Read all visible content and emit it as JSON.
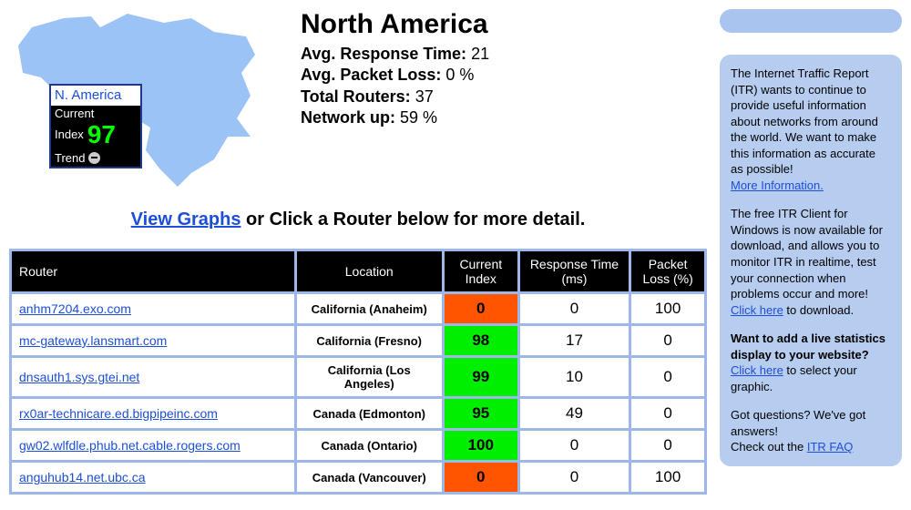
{
  "map": {
    "fill_color": "#9cc3f5",
    "badge": {
      "title": "N. America",
      "line1_label": "Current",
      "line2_label": "Index",
      "index_value": "97",
      "trend_label": "Trend"
    }
  },
  "stats": {
    "title": "North America",
    "avg_response_label": "Avg. Response Time:",
    "avg_response_value": "21",
    "avg_loss_label": "Avg. Packet Loss:",
    "avg_loss_value": "0 %",
    "total_routers_label": "Total Routers:",
    "total_routers_value": "37",
    "network_up_label": "Network up:",
    "network_up_value": "59 %"
  },
  "instruction": {
    "link_text": "View Graphs",
    "rest_text": " or Click a Router below for more detail."
  },
  "table": {
    "headers": {
      "router": "Router",
      "location": "Location",
      "index": "Current Index",
      "response": "Response Time (ms)",
      "loss": "Packet Loss (%)"
    },
    "col_widths": [
      "310px",
      "160px",
      "80px",
      "120px",
      "80px"
    ],
    "rows": [
      {
        "router": "anhm7204.exo.com",
        "location": "California (Anaheim)",
        "index": "0",
        "index_color": "red",
        "response": "0",
        "loss": "100"
      },
      {
        "router": "mc-gateway.lansmart.com",
        "location": "California (Fresno)",
        "index": "98",
        "index_color": "green",
        "response": "17",
        "loss": "0"
      },
      {
        "router": "dnsauth1.sys.gtei.net",
        "location": "California (Los Angeles)",
        "index": "99",
        "index_color": "green",
        "response": "10",
        "loss": "0"
      },
      {
        "router": "rx0ar-technicare.ed.bigpipeinc.com",
        "location": "Canada (Edmonton)",
        "index": "95",
        "index_color": "green",
        "response": "49",
        "loss": "0"
      },
      {
        "router": "gw02.wlfdle.phub.net.cable.rogers.com",
        "location": "Canada (Ontario)",
        "index": "100",
        "index_color": "green",
        "response": "0",
        "loss": "0"
      },
      {
        "router": "anguhub14.net.ubc.ca",
        "location": "Canada (Vancouver)",
        "index": "0",
        "index_color": "red",
        "response": "0",
        "loss": "100"
      }
    ]
  },
  "sidebar": {
    "p1_text": "The Internet Traffic Report (ITR) wants to continue to provide useful information about networks from around the world. We want to make this information as accurate as possible!",
    "p1_link": "More Information.",
    "p2_text": "The free ITR Client for Windows is now available for download, and allows you to monitor ITR in realtime, test your connection when problems occur and more!",
    "p2_link": "Click here",
    "p2_after": " to download.",
    "p3_bold": "Want to add a live statistics display to your website?",
    "p3_link": "Click here",
    "p3_after": " to select your graphic.",
    "p4_a": "Got questions? We've got answers!",
    "p4_b": "Check out the ",
    "p4_link": "ITR FAQ"
  },
  "colors": {
    "link": "#1d4ed8",
    "table_frame": "#9db8e8",
    "side_box": "#b6cdf0",
    "idx_green": "#00ee00",
    "idx_red": "#ff5500"
  }
}
